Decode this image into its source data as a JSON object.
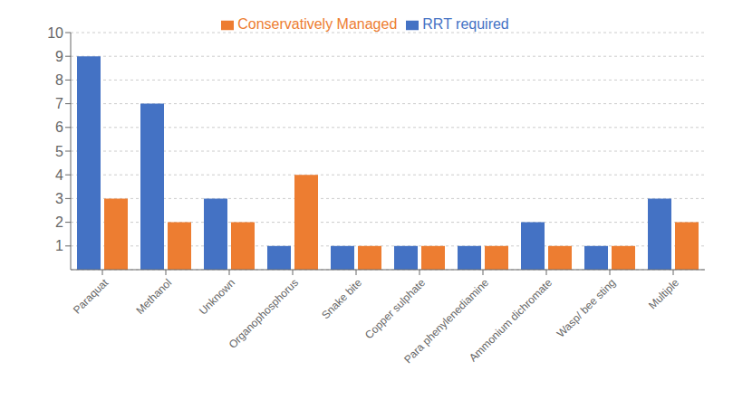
{
  "chart_data": {
    "type": "bar",
    "categories": [
      "Paraquat",
      "Methanol",
      "Unknown",
      "Organophosphorus",
      "Snake bite",
      "Copper sulphate",
      "Para phenylenediamine",
      "Ammonium dichromate",
      "Wasp/ bee sting",
      "Multiple"
    ],
    "series": [
      {
        "name": "RRT required",
        "color": "#4472C4",
        "values": [
          9,
          7,
          3,
          1,
          1,
          1,
          1,
          2,
          1,
          3
        ]
      },
      {
        "name": "Conservatively Managed",
        "color": "#ED7D31",
        "values": [
          3,
          2,
          2,
          4,
          1,
          1,
          1,
          1,
          1,
          2
        ]
      }
    ],
    "ylim": [
      0,
      10
    ],
    "yticks": [
      1,
      2,
      3,
      4,
      5,
      6,
      7,
      8,
      9,
      10
    ],
    "grid": true,
    "legend": "top"
  }
}
